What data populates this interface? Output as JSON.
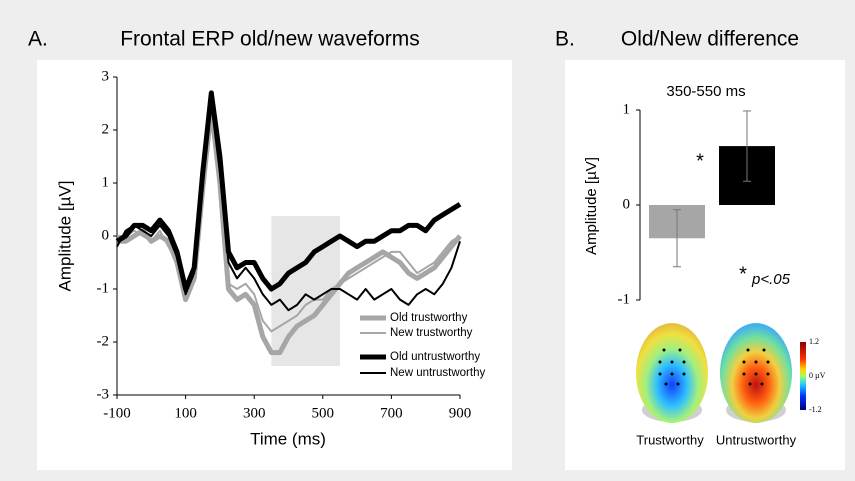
{
  "chart_data": [
    {
      "type": "line",
      "panel_label": "A.",
      "title": "Frontal ERP old/new waveforms",
      "xlabel": "Time (ms)",
      "ylabel": "Amplitude [µV]",
      "x": [
        -100,
        -75,
        -50,
        -25,
        0,
        25,
        50,
        75,
        100,
        125,
        150,
        175,
        200,
        225,
        250,
        275,
        300,
        325,
        350,
        375,
        400,
        425,
        450,
        475,
        500,
        525,
        550,
        575,
        600,
        625,
        650,
        675,
        700,
        725,
        750,
        775,
        800,
        825,
        850,
        875,
        900
      ],
      "xlim": [
        -100,
        900
      ],
      "xticks": [
        -100,
        100,
        300,
        500,
        700,
        900
      ],
      "ylim": [
        -3,
        3
      ],
      "yticks": [
        -3,
        -2,
        -1,
        0,
        1,
        2,
        3
      ],
      "highlight_x": [
        350,
        550
      ],
      "series": [
        {
          "name": "Old trustworthy",
          "color": "#a6a6a6",
          "line_width": 5,
          "values": [
            -0.1,
            -0.1,
            0.0,
            0.1,
            -0.1,
            0.0,
            -0.1,
            -0.5,
            -1.2,
            -0.8,
            0.9,
            2.4,
            1.0,
            -1.0,
            -1.2,
            -1.1,
            -1.3,
            -1.9,
            -2.2,
            -2.2,
            -1.9,
            -1.7,
            -1.6,
            -1.5,
            -1.3,
            -1.1,
            -0.9,
            -0.7,
            -0.6,
            -0.5,
            -0.4,
            -0.3,
            -0.4,
            -0.5,
            -0.7,
            -0.8,
            -0.7,
            -0.6,
            -0.4,
            -0.2,
            0.0
          ]
        },
        {
          "name": "New trustworthy",
          "color": "#a6a6a6",
          "line_width": 2,
          "values": [
            0.0,
            0.0,
            0.1,
            0.0,
            -0.1,
            0.1,
            -0.2,
            -0.5,
            -1.2,
            -0.7,
            1.0,
            2.3,
            0.8,
            -0.9,
            -1.0,
            -0.9,
            -1.1,
            -1.6,
            -1.8,
            -1.7,
            -1.6,
            -1.5,
            -1.3,
            -1.2,
            -1.2,
            -1.0,
            -0.9,
            -0.8,
            -0.7,
            -0.6,
            -0.5,
            -0.4,
            -0.3,
            -0.3,
            -0.5,
            -0.7,
            -0.6,
            -0.5,
            -0.3,
            -0.1,
            0.0
          ]
        },
        {
          "name": "Old untrustworthy",
          "color": "#000000",
          "line_width": 5,
          "values": [
            -0.1,
            0.0,
            0.2,
            0.2,
            0.1,
            0.3,
            0.1,
            -0.3,
            -1.0,
            -0.6,
            1.2,
            2.7,
            1.5,
            -0.3,
            -0.6,
            -0.5,
            -0.5,
            -0.8,
            -1.0,
            -0.9,
            -0.7,
            -0.6,
            -0.5,
            -0.3,
            -0.2,
            -0.1,
            0.0,
            -0.1,
            -0.2,
            -0.1,
            -0.1,
            0.0,
            0.1,
            0.1,
            0.2,
            0.2,
            0.1,
            0.3,
            0.4,
            0.5,
            0.6
          ]
        },
        {
          "name": "New untrustworthy",
          "color": "#000000",
          "line_width": 2,
          "values": [
            -0.2,
            0.1,
            0.2,
            0.1,
            0.0,
            0.2,
            0.0,
            -0.4,
            -1.1,
            -0.7,
            1.0,
            2.5,
            1.2,
            -0.5,
            -0.8,
            -0.6,
            -0.8,
            -1.1,
            -1.3,
            -1.2,
            -1.4,
            -1.3,
            -1.1,
            -1.2,
            -1.1,
            -1.0,
            -1.0,
            -1.1,
            -1.2,
            -1.0,
            -1.2,
            -1.1,
            -1.0,
            -1.2,
            -1.3,
            -1.1,
            -1.0,
            -1.1,
            -0.9,
            -0.6,
            -0.1
          ]
        }
      ]
    },
    {
      "type": "bar",
      "panel_label": "B.",
      "title": "Old/New difference",
      "subtitle": "350-550 ms",
      "ylabel": "Amplitude [µV]",
      "ylim": [
        -1,
        1
      ],
      "yticks": [
        -1,
        0,
        1
      ],
      "categories": [
        null,
        null
      ],
      "values": [
        -0.35,
        0.62
      ],
      "errors": [
        0.3,
        0.37
      ],
      "colors": [
        "#a6a6a6",
        "#000000"
      ],
      "annotations": [
        "*",
        "*",
        "p<.05"
      ],
      "topomap_labels": [
        "Trustworthy",
        "Untrustworthy"
      ],
      "colorbar_lim": [
        -1.2,
        1.2
      ],
      "colorbar_ticks": [
        1.2,
        {
          "value": 0,
          "label": "0 µV"
        },
        -1.2
      ]
    }
  ]
}
